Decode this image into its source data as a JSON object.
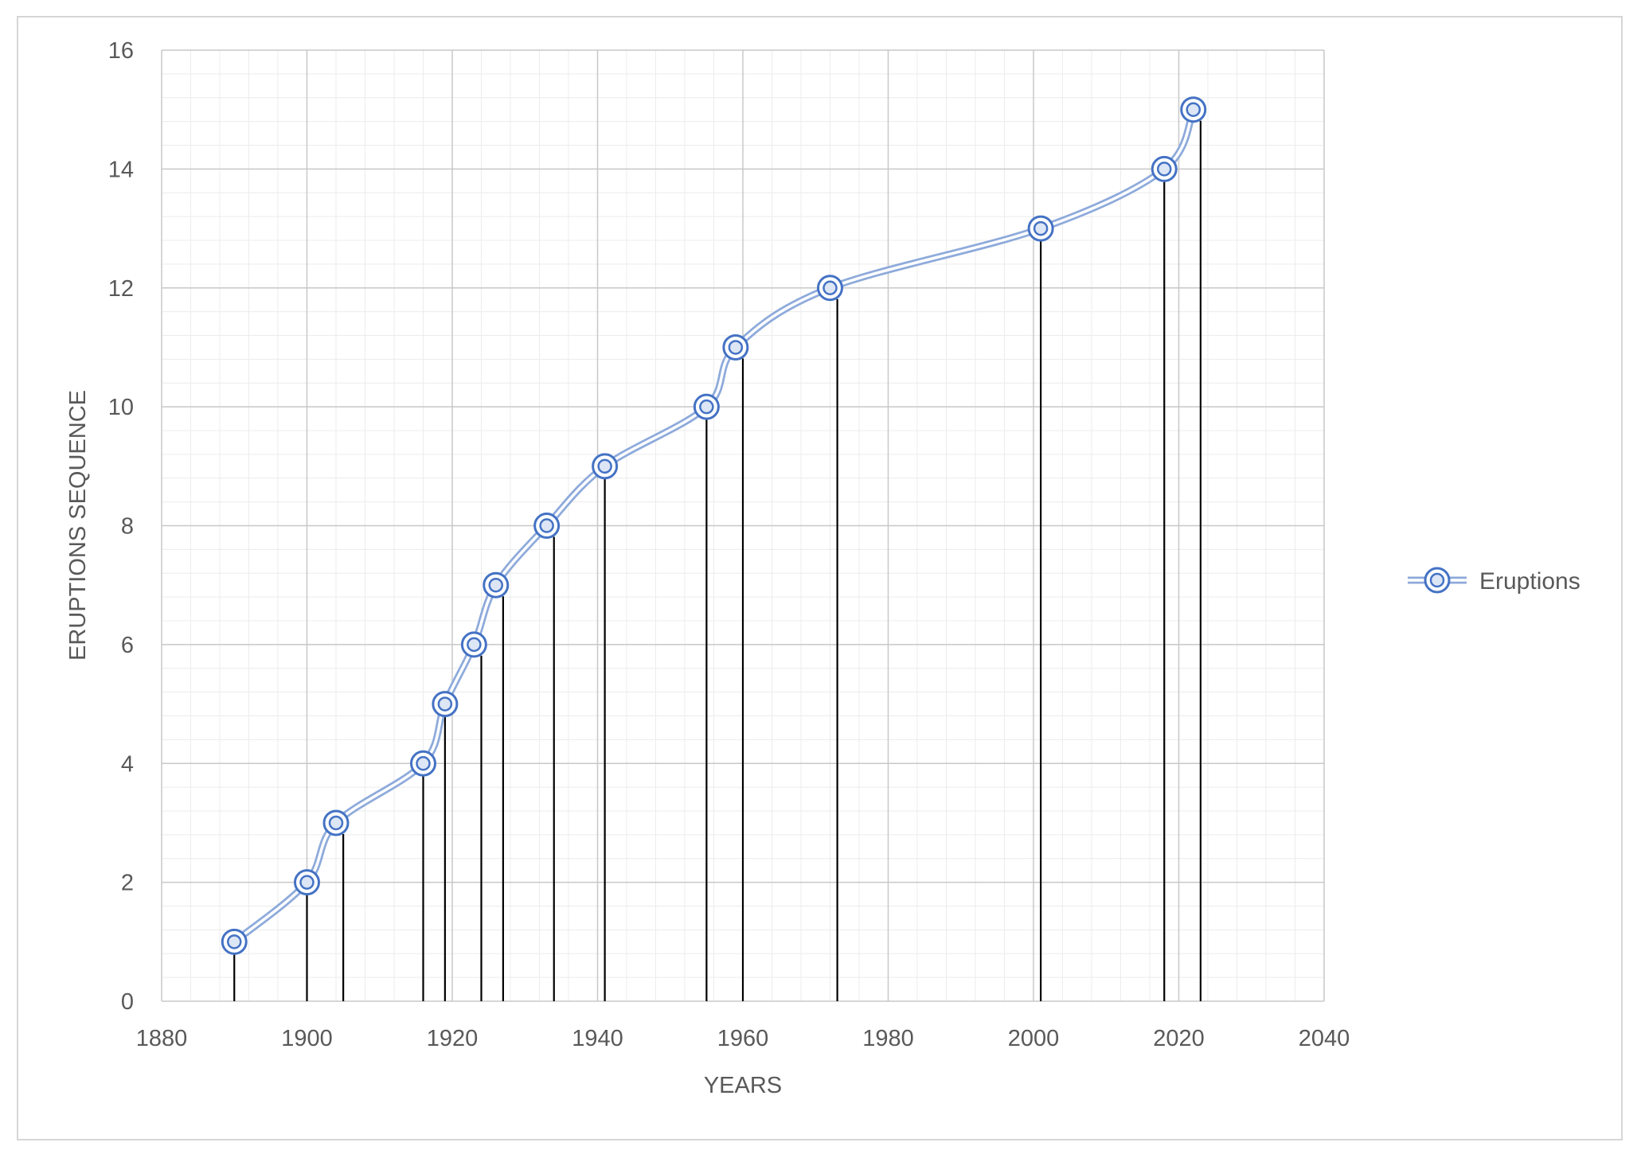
{
  "chart_data": {
    "type": "scatter",
    "x": [
      1890,
      1900,
      1904,
      1916,
      1919,
      1923,
      1926,
      1933,
      1941,
      1955,
      1959,
      1972,
      2001,
      2018,
      2022
    ],
    "y": [
      1,
      2,
      3,
      4,
      5,
      6,
      7,
      8,
      9,
      10,
      11,
      12,
      13,
      14,
      15
    ],
    "drop_x": [
      1890,
      1900,
      1905,
      1916,
      1919,
      1924,
      1927,
      1934,
      1941,
      1955,
      1960,
      1973,
      2001,
      2018,
      2023
    ],
    "series": [
      {
        "name": "Eruptions",
        "color": "#4472c4"
      }
    ],
    "xlabel": "YEARS",
    "ylabel": "ERUPTIONS SEQUENCE",
    "xlim": [
      1880,
      2040
    ],
    "ylim": [
      0,
      16
    ],
    "xticks": [
      "1880",
      "1900",
      "1920",
      "1940",
      "1960",
      "1980",
      "2000",
      "2020",
      "2040"
    ],
    "yticks": [
      "0",
      "2",
      "4",
      "6",
      "8",
      "10",
      "12",
      "14",
      "16"
    ],
    "grid": true,
    "smoothed": true,
    "drop_lines": true,
    "legend_position": "right"
  }
}
